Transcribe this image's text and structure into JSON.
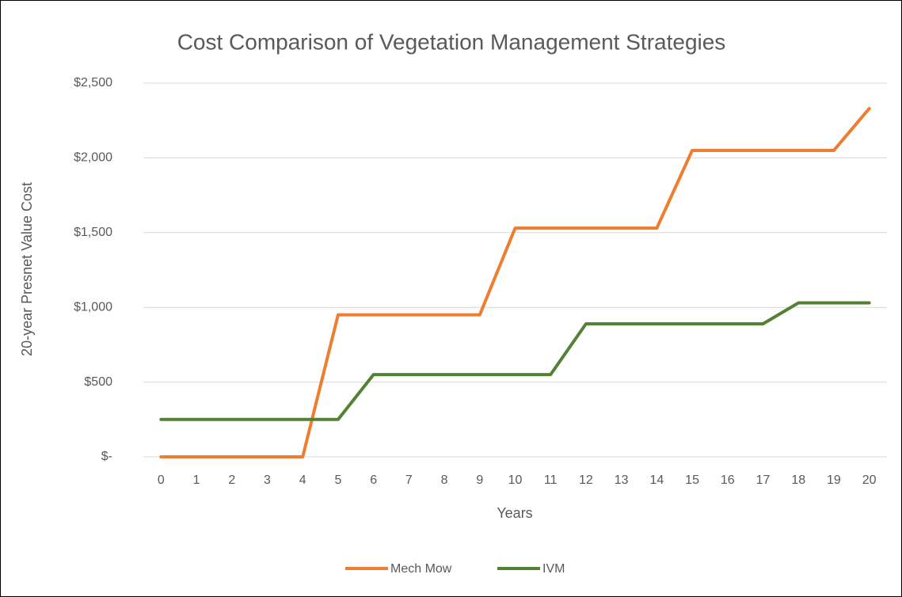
{
  "chart_data": {
    "type": "line",
    "title": "Cost Comparison of  Vegetation Management Strategies",
    "x_label": "Years",
    "y_label": "20-year Presnet Value Cost",
    "categories": [
      "0",
      "1",
      "2",
      "3",
      "4",
      "5",
      "6",
      "7",
      "8",
      "9",
      "10",
      "11",
      "12",
      "13",
      "14",
      "15",
      "16",
      "17",
      "18",
      "19",
      "20"
    ],
    "series": [
      {
        "name": "Mech Mow",
        "color": "#ed7d31",
        "values": [
          0,
          0,
          0,
          0,
          0,
          950,
          950,
          950,
          950,
          950,
          1530,
          1530,
          1530,
          1530,
          1530,
          2050,
          2050,
          2050,
          2050,
          2050,
          2330
        ]
      },
      {
        "name": "IVM",
        "color": "#548235",
        "values": [
          250,
          250,
          250,
          250,
          250,
          250,
          550,
          550,
          550,
          550,
          550,
          550,
          890,
          890,
          890,
          890,
          890,
          890,
          1030,
          1030,
          1030
        ]
      }
    ],
    "ylim": [
      0,
      2500
    ],
    "yticks": [
      {
        "value": 0,
        "label": "$-"
      },
      {
        "value": 500,
        "label": "$500"
      },
      {
        "value": 1000,
        "label": "$1,000"
      },
      {
        "value": 1500,
        "label": "$1,500"
      },
      {
        "value": 2000,
        "label": "$2,000"
      },
      {
        "value": 2500,
        "label": "$2,500"
      }
    ],
    "grid": true,
    "legend": "bottom"
  }
}
